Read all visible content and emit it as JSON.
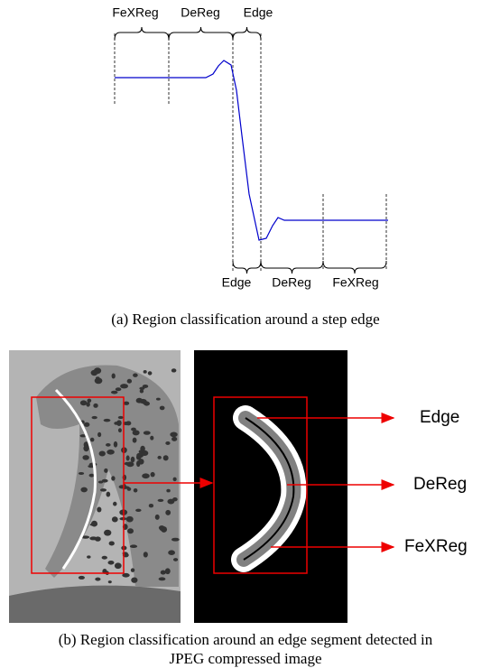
{
  "figure_a": {
    "top_labels": [
      "FeXReg",
      "DeReg",
      "Edge"
    ],
    "bottom_labels": [
      "Edge",
      "DeReg",
      "FeXReg"
    ],
    "caption": "(a) Region classification around a step edge"
  },
  "figure_b": {
    "labels": [
      "Edge",
      "DeReg",
      "FeXReg"
    ],
    "caption": [
      "(b) Region classification around an edge segment detected in",
      "JPEG compressed image"
    ]
  }
}
